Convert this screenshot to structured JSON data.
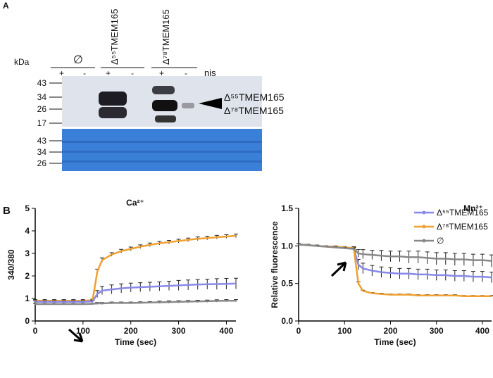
{
  "blot": {
    "panel": "A",
    "unit": "kDa",
    "groups": [
      {
        "label": "∅"
      },
      {
        "label": "Δ⁵⁵TMEM165"
      },
      {
        "label": "Δ⁷⁸TMEM165"
      }
    ],
    "lanes": [
      "+",
      "-",
      "+",
      "-",
      "+",
      "-"
    ],
    "treatment": "nis",
    "markers_top": [
      "43",
      "34",
      "26",
      "17"
    ],
    "markers_bottom": [
      "43",
      "34",
      "26"
    ],
    "bands": [
      "Δ⁵⁵TMEM165",
      "Δ⁷⁸TMEM165"
    ]
  },
  "panel_b": "B",
  "chart_data": [
    {
      "type": "line",
      "title": "Ca²⁺",
      "x_label": "Time (sec)",
      "y_label": "340/380",
      "x": [
        0,
        20,
        40,
        60,
        80,
        100,
        120,
        130,
        140,
        160,
        180,
        200,
        220,
        240,
        260,
        280,
        300,
        320,
        340,
        360,
        380,
        400,
        420
      ],
      "xlim": [
        0,
        420
      ],
      "xticks": [
        0,
        100,
        200,
        300,
        400
      ],
      "ylim": [
        0,
        5
      ],
      "yticks": [
        0,
        1,
        2,
        3,
        4,
        5
      ],
      "series": [
        {
          "color": "#f0a030",
          "values": [
            0.9,
            0.9,
            0.9,
            0.9,
            0.9,
            0.9,
            0.92,
            2.2,
            2.7,
            2.95,
            3.1,
            3.2,
            3.3,
            3.38,
            3.45,
            3.5,
            3.55,
            3.6,
            3.65,
            3.68,
            3.72,
            3.75,
            3.78
          ],
          "errors": [
            0.05,
            0.05,
            0.05,
            0.05,
            0.05,
            0.05,
            0.05,
            0.1,
            0.1,
            0.08,
            0.08,
            0.08,
            0.08,
            0.08,
            0.08,
            0.08,
            0.08,
            0.08,
            0.08,
            0.08,
            0.08,
            0.08,
            0.08
          ]
        },
        {
          "color": "#8888e8",
          "values": [
            0.85,
            0.85,
            0.85,
            0.85,
            0.85,
            0.85,
            0.87,
            1.2,
            1.35,
            1.4,
            1.45,
            1.48,
            1.5,
            1.52,
            1.54,
            1.56,
            1.58,
            1.6,
            1.62,
            1.63,
            1.64,
            1.65,
            1.66
          ],
          "errors": [
            0.05,
            0.05,
            0.05,
            0.05,
            0.05,
            0.05,
            0.05,
            0.15,
            0.18,
            0.2,
            0.2,
            0.2,
            0.2,
            0.2,
            0.2,
            0.2,
            0.22,
            0.22,
            0.22,
            0.22,
            0.24,
            0.24,
            0.24
          ]
        },
        {
          "color": "#888888",
          "values": [
            0.75,
            0.75,
            0.75,
            0.75,
            0.75,
            0.75,
            0.76,
            0.78,
            0.78,
            0.8,
            0.8,
            0.8,
            0.81,
            0.82,
            0.83,
            0.84,
            0.85,
            0.86,
            0.87,
            0.88,
            0.89,
            0.9,
            0.9
          ],
          "errors": [
            0.03,
            0.03,
            0.03,
            0.03,
            0.03,
            0.03,
            0.03,
            0.04,
            0.04,
            0.04,
            0.04,
            0.04,
            0.04,
            0.04,
            0.05,
            0.05,
            0.05,
            0.05,
            0.05,
            0.05,
            0.05,
            0.05,
            0.05
          ]
        }
      ]
    },
    {
      "type": "line",
      "title": "Mn²⁺",
      "x_label": "Time (sec)",
      "y_label": "Relative fluorescence",
      "x": [
        0,
        20,
        40,
        60,
        80,
        100,
        120,
        130,
        140,
        160,
        180,
        200,
        220,
        240,
        260,
        280,
        300,
        320,
        340,
        360,
        380,
        400,
        420
      ],
      "xlim": [
        0,
        420
      ],
      "xticks": [
        0,
        100,
        200,
        300,
        400
      ],
      "ylim": [
        0,
        1.5
      ],
      "yticks": [
        {
          "value": 0,
          "label": "0.0"
        },
        0.5,
        {
          "value": 1,
          "label": "1.0"
        },
        1.5
      ],
      "legend": "top-right",
      "series": [
        {
          "name": "Δ⁵⁵TMEM165",
          "color": "#8888e8",
          "values": [
            1.02,
            1.01,
            1.0,
            0.99,
            0.99,
            0.98,
            0.97,
            0.75,
            0.7,
            0.67,
            0.65,
            0.64,
            0.63,
            0.63,
            0.62,
            0.62,
            0.61,
            0.61,
            0.6,
            0.6,
            0.59,
            0.59,
            0.58
          ],
          "errors": [
            0.01,
            0.01,
            0.01,
            0.01,
            0.01,
            0.01,
            0.02,
            0.07,
            0.07,
            0.07,
            0.07,
            0.07,
            0.07,
            0.07,
            0.07,
            0.07,
            0.07,
            0.07,
            0.07,
            0.07,
            0.07,
            0.07,
            0.07
          ]
        },
        {
          "name": "Δ⁷⁸TMEM165",
          "color": "#f0a030",
          "values": [
            1.02,
            1.01,
            1.0,
            0.99,
            0.99,
            0.98,
            0.97,
            0.5,
            0.4,
            0.37,
            0.36,
            0.35,
            0.35,
            0.35,
            0.34,
            0.34,
            0.34,
            0.34,
            0.34,
            0.33,
            0.33,
            0.33,
            0.33
          ],
          "errors": [
            0.01,
            0.01,
            0.01,
            0.01,
            0.01,
            0.01,
            0.01,
            0.02,
            0.01,
            0.01,
            0.01,
            0.01,
            0.01,
            0.01,
            0.01,
            0.01,
            0.01,
            0.01,
            0.01,
            0.01,
            0.01,
            0.01,
            0.01
          ]
        },
        {
          "name": "∅",
          "color": "#888888",
          "values": [
            1.02,
            1.01,
            1.0,
            0.99,
            0.98,
            0.97,
            0.96,
            0.9,
            0.89,
            0.88,
            0.87,
            0.86,
            0.86,
            0.85,
            0.85,
            0.84,
            0.83,
            0.83,
            0.82,
            0.82,
            0.81,
            0.81,
            0.8
          ],
          "errors": [
            0.01,
            0.01,
            0.01,
            0.01,
            0.01,
            0.01,
            0.01,
            0.05,
            0.06,
            0.06,
            0.07,
            0.07,
            0.07,
            0.08,
            0.08,
            0.08,
            0.08,
            0.08,
            0.08,
            0.08,
            0.08,
            0.08,
            0.08
          ]
        }
      ]
    }
  ]
}
